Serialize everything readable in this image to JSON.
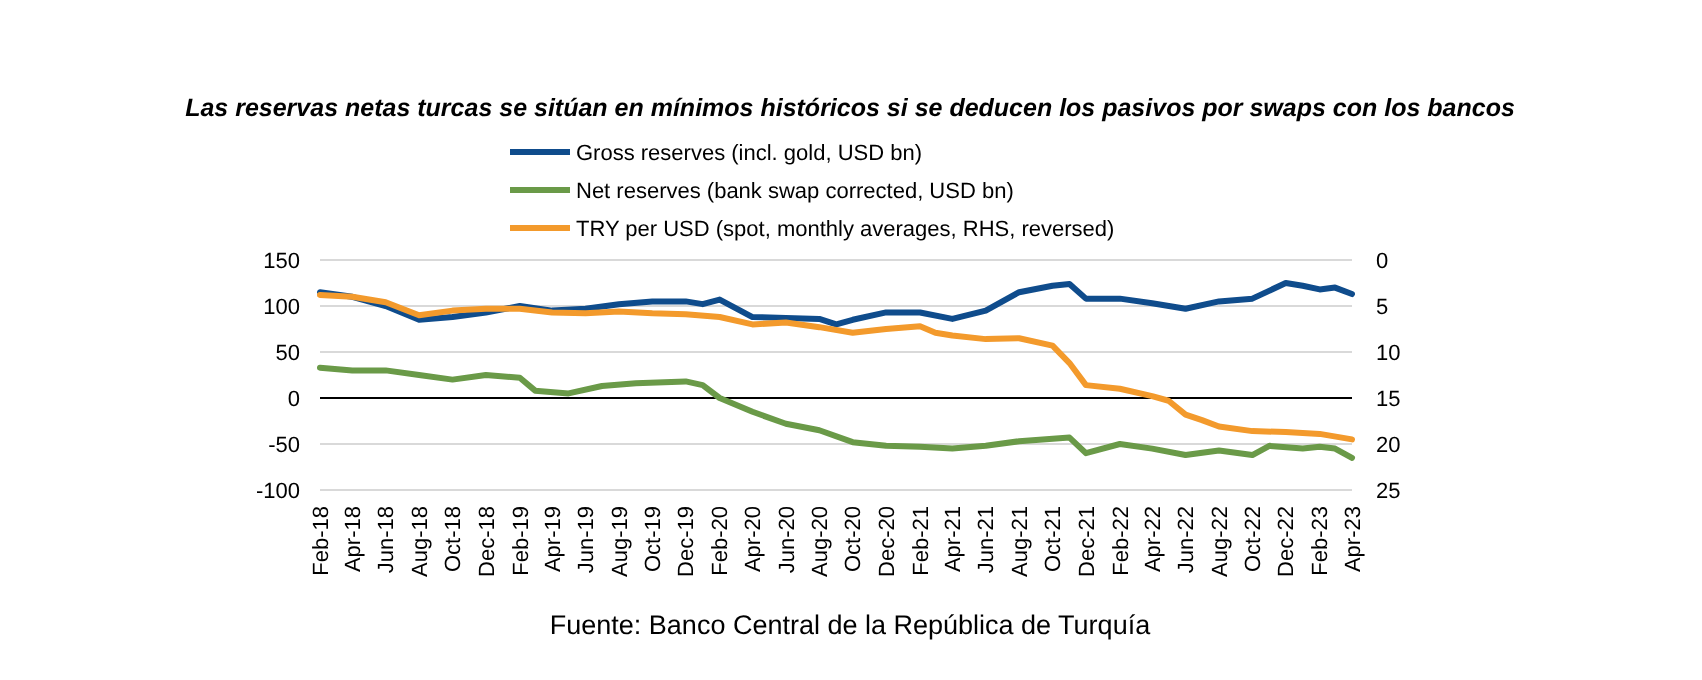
{
  "chart_data": {
    "type": "line",
    "title": "Las reservas netas turcas se sitúan en mínimos históricos si se deducen los pasivos por swaps con los bancos",
    "annotations": [
      "Fuente: Banco Central de la República de Turquía"
    ],
    "ylim": [
      -100,
      150
    ],
    "yticks": [
      -100,
      -50,
      0,
      50,
      100,
      150
    ],
    "y2lim": [
      25,
      0
    ],
    "y2ticks": [
      0,
      5,
      10,
      15,
      20,
      25
    ],
    "xlim": [
      "2018-02",
      "2023-04"
    ],
    "xticks": [
      {
        "value": "2018-02",
        "label": "Feb-18"
      },
      {
        "value": "2018-04",
        "label": "Apr-18"
      },
      {
        "value": "2018-06",
        "label": "Jun-18"
      },
      {
        "value": "2018-08",
        "label": "Aug-18"
      },
      {
        "value": "2018-10",
        "label": "Oct-18"
      },
      {
        "value": "2018-12",
        "label": "Dec-18"
      },
      {
        "value": "2019-02",
        "label": "Feb-19"
      },
      {
        "value": "2019-04",
        "label": "Apr-19"
      },
      {
        "value": "2019-06",
        "label": "Jun-19"
      },
      {
        "value": "2019-08",
        "label": "Aug-19"
      },
      {
        "value": "2019-10",
        "label": "Oct-19"
      },
      {
        "value": "2019-12",
        "label": "Dec-19"
      },
      {
        "value": "2020-02",
        "label": "Feb-20"
      },
      {
        "value": "2020-04",
        "label": "Apr-20"
      },
      {
        "value": "2020-06",
        "label": "Jun-20"
      },
      {
        "value": "2020-08",
        "label": "Aug-20"
      },
      {
        "value": "2020-10",
        "label": "Oct-20"
      },
      {
        "value": "2020-12",
        "label": "Dec-20"
      },
      {
        "value": "2021-02",
        "label": "Feb-21"
      },
      {
        "value": "2021-04",
        "label": "Apr-21"
      },
      {
        "value": "2021-06",
        "label": "Jun-21"
      },
      {
        "value": "2021-08",
        "label": "Aug-21"
      },
      {
        "value": "2021-10",
        "label": "Oct-21"
      },
      {
        "value": "2021-12",
        "label": "Dec-21"
      },
      {
        "value": "2022-02",
        "label": "Feb-22"
      },
      {
        "value": "2022-04",
        "label": "Apr-22"
      },
      {
        "value": "2022-06",
        "label": "Jun-22"
      },
      {
        "value": "2022-08",
        "label": "Aug-22"
      },
      {
        "value": "2022-10",
        "label": "Oct-22"
      },
      {
        "value": "2022-12",
        "label": "Dec-22"
      },
      {
        "value": "2023-02",
        "label": "Feb-23"
      },
      {
        "value": "2023-04",
        "label": "Apr-23"
      }
    ],
    "grid": "y",
    "legend": "top",
    "ref_lines": [
      {
        "axis": "y",
        "value": 0,
        "color": "#000000"
      }
    ],
    "series": [
      {
        "name": "Gross reserves (incl. gold, USD bn)",
        "color": "#0f4c8c",
        "x": [
          "2018-02",
          "2018-04",
          "2018-06",
          "2018-08",
          "2018-10",
          "2018-12",
          "2019-02",
          "2019-04",
          "2019-06",
          "2019-08",
          "2019-10",
          "2019-12",
          "2020-01",
          "2020-02",
          "2020-04",
          "2020-06",
          "2020-08",
          "2020-09",
          "2020-10",
          "2020-12",
          "2021-02",
          "2021-04",
          "2021-06",
          "2021-08",
          "2021-10",
          "2021-11",
          "2021-12",
          "2022-02",
          "2022-04",
          "2022-06",
          "2022-08",
          "2022-10",
          "2022-12",
          "2023-01",
          "2023-02",
          "2023-03",
          "2023-04"
        ],
        "values": [
          115,
          110,
          100,
          85,
          88,
          93,
          100,
          95,
          97,
          102,
          105,
          105,
          102,
          107,
          88,
          87,
          86,
          80,
          85,
          93,
          93,
          86,
          95,
          115,
          122,
          124,
          108,
          108,
          103,
          97,
          105,
          108,
          125,
          122,
          118,
          120,
          113
        ]
      },
      {
        "name": "Net reserves (bank swap corrected, USD bn)",
        "color": "#6a9a48",
        "x": [
          "2018-02",
          "2018-04",
          "2018-06",
          "2018-08",
          "2018-10",
          "2018-12",
          "2019-02",
          "2019-03",
          "2019-05",
          "2019-07",
          "2019-09",
          "2019-12",
          "2020-01",
          "2020-02",
          "2020-04",
          "2020-06",
          "2020-08",
          "2020-10",
          "2020-12",
          "2021-02",
          "2021-04",
          "2021-06",
          "2021-08",
          "2021-11",
          "2021-12",
          "2022-02",
          "2022-04",
          "2022-06",
          "2022-08",
          "2022-10",
          "2022-11",
          "2023-01",
          "2023-02",
          "2023-03",
          "2023-04"
        ],
        "values": [
          33,
          30,
          30,
          25,
          20,
          25,
          22,
          8,
          5,
          13,
          16,
          18,
          14,
          0,
          -15,
          -28,
          -35,
          -48,
          -52,
          -53,
          -55,
          -52,
          -47,
          -43,
          -60,
          -50,
          -55,
          -62,
          -57,
          -62,
          -52,
          -55,
          -53,
          -55,
          -65
        ]
      },
      {
        "name": "TRY per USD (spot, monthly averages, RHS, reversed)",
        "color": "#f39a2c",
        "axis": "y2",
        "x": [
          "2018-02",
          "2018-04",
          "2018-06",
          "2018-08",
          "2018-10",
          "2018-12",
          "2019-02",
          "2019-04",
          "2019-06",
          "2019-08",
          "2019-10",
          "2019-12",
          "2020-02",
          "2020-04",
          "2020-06",
          "2020-08",
          "2020-10",
          "2020-12",
          "2021-02",
          "2021-03",
          "2021-04",
          "2021-06",
          "2021-08",
          "2021-10",
          "2021-11",
          "2021-12",
          "2022-02",
          "2022-04",
          "2022-05",
          "2022-06",
          "2022-07",
          "2022-08",
          "2022-10",
          "2022-12",
          "2023-02",
          "2023-04"
        ],
        "values": [
          3.8,
          4.0,
          4.6,
          6.0,
          5.5,
          5.3,
          5.3,
          5.7,
          5.8,
          5.6,
          5.8,
          5.9,
          6.2,
          7.0,
          6.8,
          7.3,
          7.9,
          7.5,
          7.2,
          7.9,
          8.2,
          8.6,
          8.5,
          9.3,
          11.2,
          13.6,
          14.0,
          14.8,
          15.3,
          16.8,
          17.4,
          18.1,
          18.6,
          18.7,
          18.9,
          19.5
        ]
      }
    ]
  }
}
